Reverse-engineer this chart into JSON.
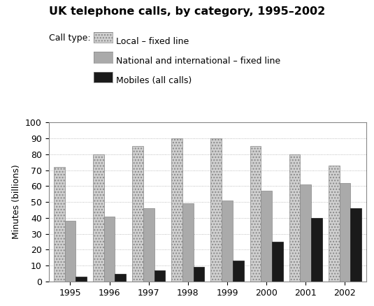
{
  "title": "UK telephone calls, by category, 1995–2002",
  "ylabel": "Minutes (billions)",
  "years": [
    1995,
    1996,
    1997,
    1998,
    1999,
    2000,
    2001,
    2002
  ],
  "local_fixed": [
    72,
    80,
    85,
    90,
    90,
    85,
    80,
    73
  ],
  "national_fixed": [
    38,
    41,
    46,
    49,
    51,
    57,
    61,
    62
  ],
  "mobiles": [
    3,
    5,
    7,
    9,
    13,
    25,
    40,
    46
  ],
  "ylim": [
    0,
    100
  ],
  "yticks": [
    0,
    10,
    20,
    30,
    40,
    50,
    60,
    70,
    80,
    90,
    100
  ],
  "legend_labels": [
    "Local – fixed line",
    "National and international – fixed line",
    "Mobiles (all calls)"
  ],
  "legend_title": "Call type:",
  "background_color": "#ffffff",
  "bar_width": 0.28
}
